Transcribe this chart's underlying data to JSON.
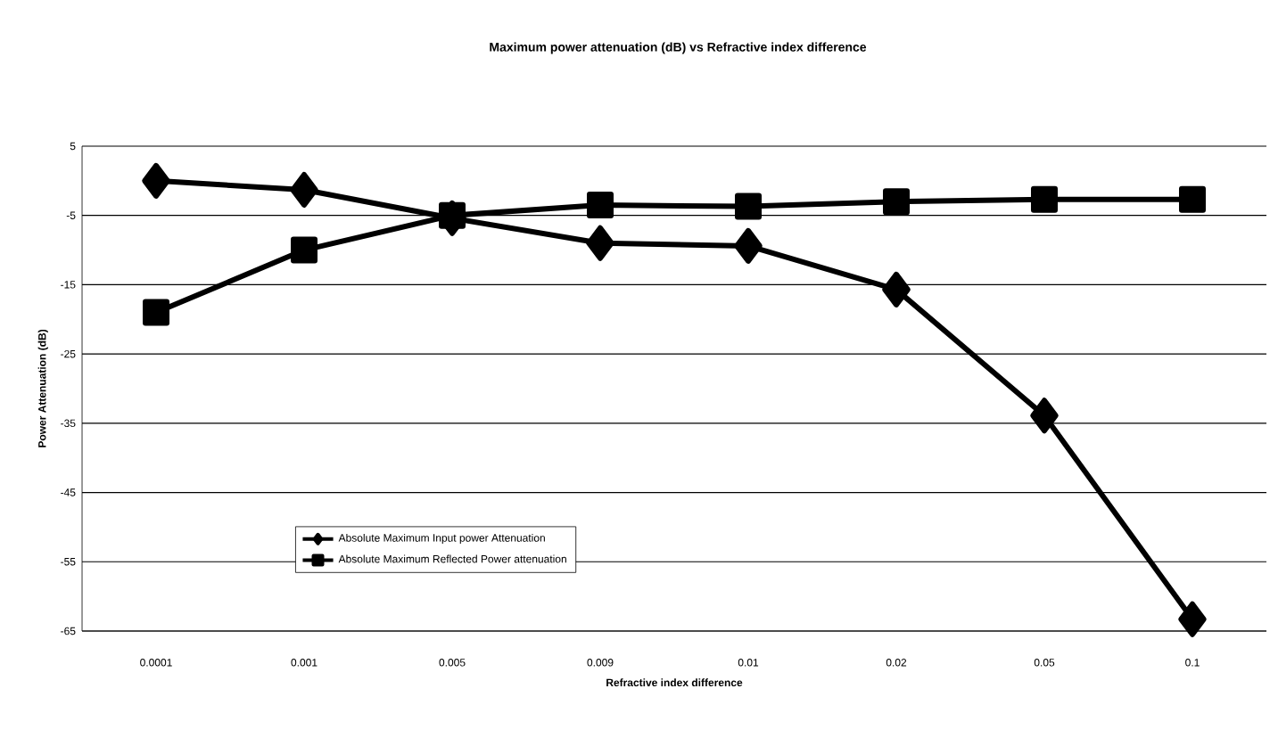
{
  "chart_data": {
    "type": "line",
    "title": "Maximum power attenuation (dB) vs Refractive index difference",
    "xlabel": "Refractive index difference",
    "ylabel": "Power Attenuation (dB)",
    "categories": [
      "0.0001",
      "0.001",
      "0.005",
      "0.009",
      "0.01",
      "0.02",
      "0.05",
      "0.1"
    ],
    "series": [
      {
        "name": "Absolute Maximum Input power Attenuation",
        "color": "#000000",
        "marker": "diamond",
        "values": [
          0,
          -1.3,
          -5.4,
          -9,
          -9.4,
          -15.7,
          -33.9,
          -63.3
        ]
      },
      {
        "name": "Absolute Maximum Reflected Power attenuation",
        "color": "#000000",
        "marker": "square",
        "values": [
          -19,
          -10,
          -5,
          -3.5,
          -3.7,
          -3,
          -2.7,
          -2.7
        ]
      }
    ],
    "ylim": [
      -65,
      5
    ],
    "yticks": [
      5,
      -5,
      -15,
      -25,
      -35,
      -45,
      -55,
      -65
    ],
    "grid": "y",
    "legend": "bottom left"
  }
}
